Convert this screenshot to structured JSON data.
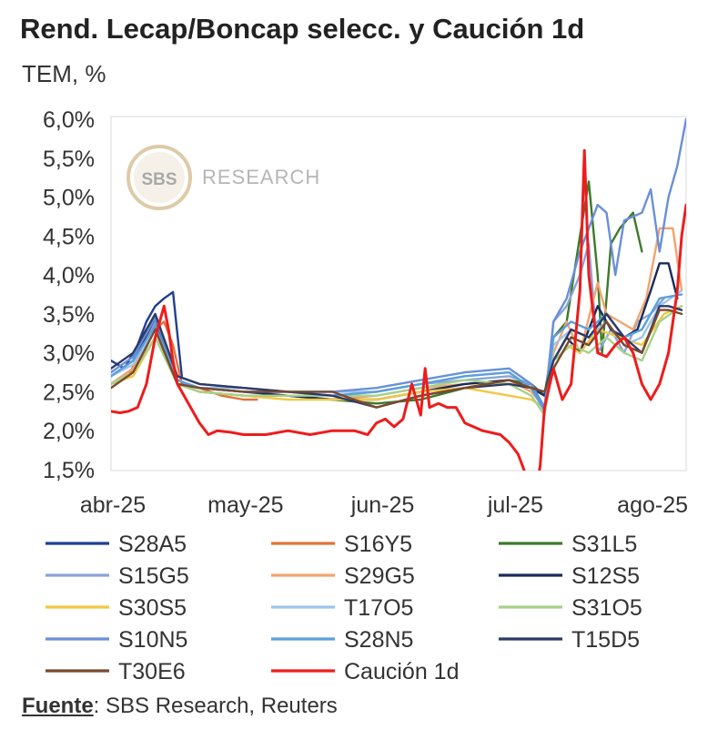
{
  "source": {
    "label": "Fuente",
    "text": ": SBS Research, Reuters"
  },
  "chart_data": {
    "type": "line",
    "title": "Rend. Lecap/Boncap selecc. y Caución 1d",
    "subtitle": "TEM, %",
    "watermark": {
      "logo": "SBS",
      "text": "RESEARCH"
    },
    "ylim": [
      1.5,
      6.0
    ],
    "yticks": [
      "1,5%",
      "2,0%",
      "2,5%",
      "3,0%",
      "3,5%",
      "4,0%",
      "4,5%",
      "5,0%",
      "5,5%",
      "6,0%"
    ],
    "xticks": [
      {
        "label": "abr-25",
        "x": 0
      },
      {
        "label": "may-25",
        "x": 30
      },
      {
        "label": "jun-25",
        "x": 61
      },
      {
        "label": "jul-25",
        "x": 91
      },
      {
        "label": "ago-25",
        "x": 122
      }
    ],
    "xlim": [
      0,
      130
    ],
    "grid": false,
    "legend_placement": "bottom",
    "series": [
      {
        "name": "S28A5",
        "color": "#1f3f8f",
        "x": [
          0,
          3,
          6,
          8,
          10,
          12,
          14,
          16
        ],
        "y": [
          2.9,
          2.8,
          3.1,
          3.4,
          3.6,
          3.7,
          3.78,
          2.7
        ]
      },
      {
        "name": "S16Y5",
        "color": "#e0733a",
        "x": [
          0,
          4,
          8,
          10,
          12,
          14,
          16,
          20,
          25,
          30,
          33
        ],
        "y": [
          2.6,
          2.7,
          3.2,
          3.3,
          3.4,
          3.1,
          2.6,
          2.55,
          2.45,
          2.4,
          2.4
        ]
      },
      {
        "name": "S31L5",
        "color": "#3d7a2a",
        "x": [
          0,
          5,
          10,
          15,
          20,
          30,
          40,
          50,
          60,
          70,
          80,
          90,
          95,
          98,
          100,
          103,
          106,
          108,
          110,
          111,
          113,
          115,
          118,
          120
        ],
        "y": [
          2.6,
          2.8,
          3.3,
          2.6,
          2.5,
          2.45,
          2.45,
          2.4,
          2.35,
          2.4,
          2.55,
          2.65,
          2.6,
          2.45,
          3.2,
          3.4,
          4.5,
          5.2,
          4.0,
          3.0,
          4.4,
          4.6,
          4.8,
          4.3
        ]
      },
      {
        "name": "S15G5",
        "color": "#8aa4d6",
        "x": [
          0,
          5,
          10,
          15,
          20,
          30,
          40,
          50,
          60,
          70,
          80,
          90,
          95,
          98,
          100,
          103,
          106,
          108,
          110,
          113,
          116,
          119,
          122,
          125
        ],
        "y": [
          2.7,
          2.9,
          3.4,
          2.65,
          2.55,
          2.5,
          2.5,
          2.45,
          2.5,
          2.6,
          2.65,
          2.7,
          2.6,
          2.3,
          3.4,
          3.6,
          4.0,
          4.4,
          3.0,
          3.3,
          3.0,
          3.4,
          3.5,
          3.7
        ]
      },
      {
        "name": "S29G5",
        "color": "#f2a46e",
        "x": [
          0,
          5,
          10,
          15,
          20,
          30,
          40,
          50,
          60,
          70,
          80,
          90,
          95,
          98,
          100,
          103,
          106,
          110,
          112,
          115,
          118,
          121,
          124,
          127,
          129
        ],
        "y": [
          2.6,
          2.8,
          3.3,
          2.6,
          2.5,
          2.45,
          2.45,
          2.4,
          2.45,
          2.55,
          2.6,
          2.65,
          2.5,
          2.3,
          3.0,
          3.4,
          3.0,
          3.9,
          3.5,
          3.4,
          3.3,
          3.7,
          4.6,
          4.6,
          3.8
        ]
      },
      {
        "name": "S12S5",
        "color": "#1b2a5c",
        "x": [
          0,
          5,
          10,
          15,
          20,
          30,
          40,
          50,
          60,
          70,
          80,
          90,
          95,
          98,
          100,
          103,
          106,
          110,
          113,
          116,
          119,
          122,
          124,
          126,
          128
        ],
        "y": [
          2.7,
          2.9,
          3.45,
          2.6,
          2.55,
          2.5,
          2.45,
          2.4,
          2.4,
          2.5,
          2.6,
          2.65,
          2.55,
          2.45,
          2.9,
          3.2,
          3.0,
          3.6,
          3.3,
          3.2,
          3.3,
          3.8,
          4.15,
          4.15,
          3.7
        ]
      },
      {
        "name": "S30S5",
        "color": "#f2c744",
        "x": [
          0,
          5,
          10,
          15,
          20,
          30,
          40,
          50,
          60,
          70,
          80,
          90,
          95,
          98,
          100,
          103,
          106,
          110,
          115,
          120,
          125,
          129
        ],
        "y": [
          2.6,
          2.7,
          3.2,
          2.6,
          2.5,
          2.45,
          2.4,
          2.4,
          2.4,
          2.5,
          2.55,
          2.45,
          2.4,
          2.3,
          2.8,
          3.1,
          3.0,
          3.3,
          3.2,
          3.1,
          3.5,
          3.6
        ]
      },
      {
        "name": "T17O5",
        "color": "#9fc4ec",
        "x": [
          0,
          5,
          10,
          15,
          20,
          30,
          40,
          50,
          60,
          70,
          80,
          90,
          95,
          98,
          100,
          104,
          108,
          112,
          116,
          120,
          124,
          129
        ],
        "y": [
          2.7,
          2.85,
          3.3,
          2.65,
          2.55,
          2.55,
          2.5,
          2.5,
          2.5,
          2.6,
          2.7,
          2.75,
          2.55,
          2.25,
          3.1,
          3.3,
          3.2,
          3.4,
          3.1,
          3.2,
          3.6,
          3.8
        ]
      },
      {
        "name": "S31O5",
        "color": "#a6d18a",
        "x": [
          0,
          5,
          10,
          15,
          20,
          30,
          40,
          50,
          60,
          70,
          80,
          90,
          95,
          98,
          100,
          104,
          108,
          112,
          116,
          120,
          124,
          129
        ],
        "y": [
          2.6,
          2.75,
          3.2,
          2.6,
          2.5,
          2.45,
          2.45,
          2.45,
          2.45,
          2.55,
          2.65,
          2.6,
          2.45,
          2.2,
          2.9,
          3.1,
          3.0,
          3.2,
          3.0,
          2.9,
          3.4,
          3.6
        ]
      },
      {
        "name": "S10N5",
        "color": "#6a8fd9",
        "x": [
          0,
          5,
          10,
          15,
          20,
          30,
          40,
          50,
          60,
          70,
          80,
          90,
          95,
          98,
          100,
          103,
          106,
          110,
          112,
          114,
          116,
          118,
          120,
          122,
          124,
          126,
          128,
          130
        ],
        "y": [
          2.75,
          2.95,
          3.45,
          2.7,
          2.6,
          2.55,
          2.5,
          2.5,
          2.55,
          2.65,
          2.75,
          2.8,
          2.6,
          2.3,
          3.4,
          3.7,
          4.3,
          4.9,
          4.8,
          4.0,
          4.7,
          4.75,
          4.8,
          5.1,
          4.3,
          5.0,
          5.4,
          6.0
        ]
      },
      {
        "name": "S28N5",
        "color": "#5aa0dc",
        "x": [
          0,
          5,
          10,
          15,
          20,
          30,
          40,
          50,
          60,
          70,
          80,
          90,
          95,
          98,
          100,
          104,
          108,
          112,
          116,
          120,
          124,
          129
        ],
        "y": [
          2.7,
          2.9,
          3.35,
          2.65,
          2.55,
          2.5,
          2.5,
          2.45,
          2.5,
          2.6,
          2.7,
          2.75,
          2.55,
          2.25,
          3.2,
          3.4,
          3.3,
          3.5,
          3.2,
          3.3,
          3.7,
          3.75
        ]
      },
      {
        "name": "T15D5",
        "color": "#2d3a66",
        "x": [
          0,
          5,
          10,
          15,
          20,
          30,
          40,
          50,
          60,
          70,
          80,
          90,
          95,
          98,
          100,
          104,
          108,
          112,
          116,
          120,
          124,
          126,
          129
        ],
        "y": [
          2.8,
          3.0,
          3.5,
          2.7,
          2.6,
          2.55,
          2.5,
          2.45,
          2.3,
          2.45,
          2.55,
          2.6,
          2.55,
          2.5,
          2.9,
          3.3,
          3.2,
          3.5,
          3.2,
          3.0,
          3.6,
          3.6,
          3.55
        ]
      },
      {
        "name": "T30E6",
        "color": "#7a4a2e",
        "x": [
          0,
          5,
          10,
          15,
          20,
          30,
          40,
          50,
          60,
          70,
          80,
          90,
          95,
          98,
          100,
          104,
          108,
          112,
          116,
          120,
          124,
          126,
          129
        ],
        "y": [
          2.55,
          2.75,
          3.3,
          2.6,
          2.55,
          2.5,
          2.5,
          2.5,
          2.3,
          2.45,
          2.55,
          2.65,
          2.55,
          2.5,
          2.8,
          3.2,
          3.1,
          3.4,
          3.1,
          3.0,
          3.55,
          3.55,
          3.5
        ]
      },
      {
        "name": "Caución 1d",
        "color": "#ee1c1c",
        "x": [
          0,
          2,
          4,
          6,
          8,
          10,
          12,
          13,
          14,
          15,
          16,
          18,
          20,
          22,
          24,
          27,
          30,
          35,
          40,
          45,
          50,
          55,
          58,
          60,
          62,
          64,
          66,
          68,
          70,
          71,
          72,
          74,
          76,
          78,
          80,
          84,
          88,
          90,
          92,
          94,
          96,
          97,
          98,
          100,
          102,
          104,
          106,
          107,
          108,
          110,
          112,
          114,
          116,
          118,
          120,
          122,
          124,
          126,
          128,
          129,
          130
        ],
        "y": [
          2.25,
          2.23,
          2.25,
          2.3,
          2.6,
          3.2,
          3.6,
          3.3,
          2.9,
          2.6,
          2.5,
          2.3,
          2.1,
          1.95,
          2.0,
          1.98,
          1.95,
          1.95,
          2.0,
          1.95,
          2.0,
          2.0,
          1.95,
          2.1,
          2.15,
          2.05,
          2.15,
          2.6,
          2.2,
          2.8,
          2.3,
          2.35,
          2.3,
          2.3,
          2.1,
          2.0,
          1.95,
          1.85,
          1.7,
          1.4,
          1.2,
          1.55,
          2.3,
          2.8,
          2.4,
          2.6,
          3.8,
          5.6,
          4.0,
          3.0,
          2.95,
          3.1,
          3.2,
          3.0,
          2.6,
          2.4,
          2.6,
          3.0,
          3.8,
          4.5,
          4.9
        ]
      }
    ]
  }
}
